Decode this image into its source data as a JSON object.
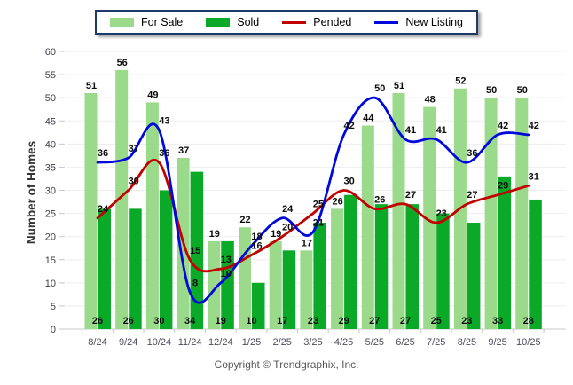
{
  "footer": {
    "text": "Copyright © Trendgraphix, Inc."
  },
  "chart_data": {
    "type": "combo",
    "categories": [
      "8/24",
      "9/24",
      "10/24",
      "11/24",
      "12/24",
      "1/25",
      "2/25",
      "3/25",
      "4/25",
      "5/25",
      "6/25",
      "7/25",
      "8/25",
      "9/25",
      "10/25"
    ],
    "series": [
      {
        "name": "For Sale",
        "type": "bar",
        "color": "#9bda8a",
        "values": [
          51,
          56,
          49,
          37,
          19,
          22,
          19,
          17,
          26,
          44,
          51,
          48,
          52,
          50,
          50
        ]
      },
      {
        "name": "Sold",
        "type": "bar",
        "color": "#0aa928",
        "values": [
          26,
          26,
          30,
          34,
          19,
          10,
          17,
          23,
          29,
          27,
          27,
          25,
          23,
          33,
          28
        ]
      },
      {
        "name": "Pended",
        "type": "line",
        "color": "#c10000",
        "values": [
          24,
          30,
          36,
          15,
          13,
          16,
          20,
          25,
          30,
          26,
          27,
          23,
          27,
          29,
          31
        ]
      },
      {
        "name": "New Listing",
        "type": "line",
        "color": "#0009db",
        "values": [
          36,
          37,
          43,
          8,
          10,
          18,
          24,
          21,
          42,
          50,
          41,
          41,
          36,
          42,
          42
        ]
      }
    ],
    "ylabel": "Number of Homes",
    "ylim": [
      0,
      60
    ],
    "ytick_step": 5,
    "grid": true,
    "legend_position": "top",
    "data_labels": true
  }
}
